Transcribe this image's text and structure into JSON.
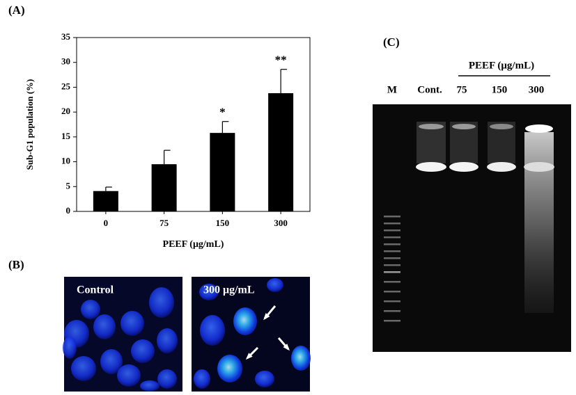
{
  "chart_data": {
    "type": "bar",
    "panel_label": "(A)",
    "ylabel": "Sub-G1 population (%)",
    "xlabel": "PEEF (μg/mL)",
    "categories": [
      "0",
      "75",
      "150",
      "300"
    ],
    "values": [
      4.1,
      9.5,
      15.8,
      23.8
    ],
    "errors": [
      0.8,
      2.8,
      2.3,
      4.8
    ],
    "value_annotations": [
      null,
      null,
      "*",
      "**"
    ],
    "color": "#000000",
    "ylim": [
      0,
      35
    ],
    "yticks": [
      0,
      5,
      10,
      15,
      20,
      25,
      30,
      35
    ]
  },
  "panel_b": {
    "label": "(B)",
    "images": [
      {
        "caption": "Control"
      },
      {
        "caption": "300 μg/mL"
      }
    ]
  },
  "panel_c": {
    "label": "(C)",
    "treatment": "PEEF (μg/mL)",
    "lanes": [
      "M",
      "Cont.",
      "75",
      "150",
      "300"
    ]
  }
}
